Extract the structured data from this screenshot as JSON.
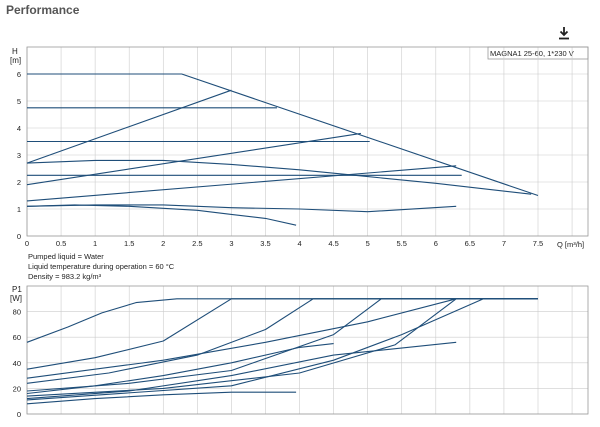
{
  "page": {
    "title": "Performance",
    "download_icon": "download-icon"
  },
  "colors": {
    "curve": "#1f4e79",
    "grid": "#cccccc",
    "frame": "#999999"
  },
  "chart_data": [
    {
      "type": "line",
      "ylabel": "H",
      "yunit": "[m]",
      "xlabel": "Q [m³/h]",
      "xlim": [
        0,
        8
      ],
      "ylim": [
        0,
        7
      ],
      "xticks": [
        "0",
        "0.5",
        "1",
        "1.5",
        "2",
        "2.5",
        "3",
        "3.5",
        "4",
        "4.5",
        "5",
        "5.5",
        "6",
        "6.5",
        "7",
        "7.5"
      ],
      "yticks": [
        "0",
        "1",
        "2",
        "3",
        "4",
        "5",
        "6"
      ],
      "legend": "MAGNA1 25-60, 1*230 V",
      "grid": true,
      "series": [
        {
          "x": [
            0,
            2.27,
            7.5
          ],
          "y": [
            6.0,
            6.0,
            1.5
          ]
        },
        {
          "x": [
            0,
            3.67
          ],
          "y": [
            4.75,
            4.75
          ]
        },
        {
          "x": [
            0,
            5.03
          ],
          "y": [
            3.5,
            3.5
          ]
        },
        {
          "x": [
            0,
            6.38
          ],
          "y": [
            2.25,
            2.25
          ]
        },
        {
          "x": [
            0,
            3.0
          ],
          "y": [
            2.7,
            5.4
          ]
        },
        {
          "x": [
            0,
            4.9
          ],
          "y": [
            1.9,
            3.8
          ]
        },
        {
          "x": [
            0,
            6.3
          ],
          "y": [
            1.3,
            2.6
          ]
        },
        {
          "x": [
            0,
            1.0,
            2.0,
            3.0,
            4.0,
            5.0,
            6.0,
            7.4
          ],
          "y": [
            2.7,
            2.8,
            2.8,
            2.65,
            2.45,
            2.2,
            1.95,
            1.55
          ]
        },
        {
          "x": [
            0,
            1.0,
            2.0,
            3.0,
            4.0,
            5.0,
            6.3
          ],
          "y": [
            1.1,
            1.15,
            1.15,
            1.05,
            1.0,
            0.9,
            1.1
          ]
        },
        {
          "x": [
            0,
            0.7,
            1.5,
            2.5,
            3.0,
            3.5,
            3.95
          ],
          "y": [
            1.1,
            1.15,
            1.1,
            0.95,
            0.8,
            0.65,
            0.4
          ]
        }
      ],
      "annotations": [
        "Pumped liquid = Water",
        "Liquid temperature during operation = 60 °C",
        "Density = 983.2 kg/m³"
      ]
    },
    {
      "type": "line",
      "ylabel": "P1",
      "yunit": "[W]",
      "xlim": [
        0,
        8
      ],
      "ylim": [
        0,
        100
      ],
      "yticks": [
        "0",
        "20",
        "40",
        "60",
        "80"
      ],
      "grid": true,
      "series": [
        {
          "x": [
            0,
            0.6,
            1.1,
            1.6,
            2.2,
            7.5
          ],
          "y": [
            56,
            68,
            79,
            87,
            90,
            90
          ]
        },
        {
          "x": [
            0,
            1.0,
            2.0,
            3.0,
            7.5
          ],
          "y": [
            35,
            44,
            57,
            90,
            90
          ]
        },
        {
          "x": [
            0,
            1.2,
            2.5,
            3.5,
            4.2,
            7.5
          ],
          "y": [
            24,
            32,
            46,
            66,
            90,
            90
          ]
        },
        {
          "x": [
            0,
            1.5,
            3.0,
            4.5,
            5.2,
            7.5
          ],
          "y": [
            18,
            24,
            34,
            62,
            90,
            90
          ]
        },
        {
          "x": [
            0,
            2.0,
            4.0,
            5.4,
            6.3,
            7.5
          ],
          "y": [
            14,
            20,
            32,
            54,
            90,
            90
          ]
        },
        {
          "x": [
            0,
            3.0,
            4.5,
            5.5,
            6.7,
            7.5
          ],
          "y": [
            11,
            22,
            42,
            62,
            90,
            90
          ]
        },
        {
          "x": [
            0,
            2.0,
            3.5,
            5.0,
            6.3
          ],
          "y": [
            28,
            42,
            56,
            72,
            90
          ]
        },
        {
          "x": [
            0,
            1.0,
            2.0,
            3.0,
            4.0,
            4.5
          ],
          "y": [
            16,
            22,
            30,
            40,
            52,
            55
          ]
        },
        {
          "x": [
            0,
            1.5,
            3.0,
            4.5,
            6.3
          ],
          "y": [
            12,
            18,
            30,
            46,
            56
          ]
        },
        {
          "x": [
            0,
            1.0,
            2.0,
            3.0,
            3.95
          ],
          "y": [
            8,
            12,
            15,
            17,
            17
          ]
        }
      ]
    }
  ]
}
